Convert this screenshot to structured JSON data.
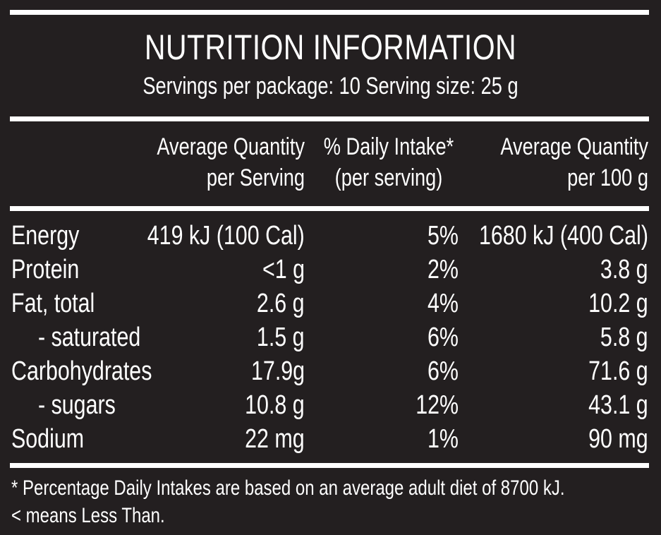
{
  "title": "NUTRITION INFORMATION",
  "servings_line": "Servings per package: 10  Serving size: 25 g",
  "headers": {
    "per_serving_line1": "Average Quantity",
    "per_serving_line2": "per Serving",
    "daily_intake_line1": "% Daily Intake*",
    "daily_intake_line2": "(per serving)",
    "per_100g_line1": "Average Quantity",
    "per_100g_line2": "per 100 g"
  },
  "rows": [
    {
      "name": "Energy",
      "per_serving": "419 kJ (100 Cal)",
      "daily_intake": "5%",
      "per_100g": "1680 kJ (400 Cal)"
    },
    {
      "name": "Protein",
      "per_serving": "<1 g",
      "daily_intake": "2%",
      "per_100g": "3.8 g"
    },
    {
      "name": "Fat, total",
      "per_serving": "2.6 g",
      "daily_intake": "4%",
      "per_100g": "10.2 g"
    },
    {
      "name": "- saturated",
      "per_serving": "1.5 g",
      "daily_intake": "6%",
      "per_100g": "5.8 g"
    },
    {
      "name": "Carbohydrates",
      "per_serving": "17.9g",
      "daily_intake": "6%",
      "per_100g": "71.6 g"
    },
    {
      "name": "- sugars",
      "per_serving": "10.8 g",
      "daily_intake": "12%",
      "per_100g": "43.1 g"
    },
    {
      "name": "Sodium",
      "per_serving": "22 mg",
      "daily_intake": "1%",
      "per_100g": "90 mg"
    }
  ],
  "footnotes": [
    "* Percentage Daily Intakes are based on an average adult diet of 8700 kJ.",
    "< means Less Than."
  ],
  "colors": {
    "background": "#231f20",
    "text": "#ffffff"
  }
}
